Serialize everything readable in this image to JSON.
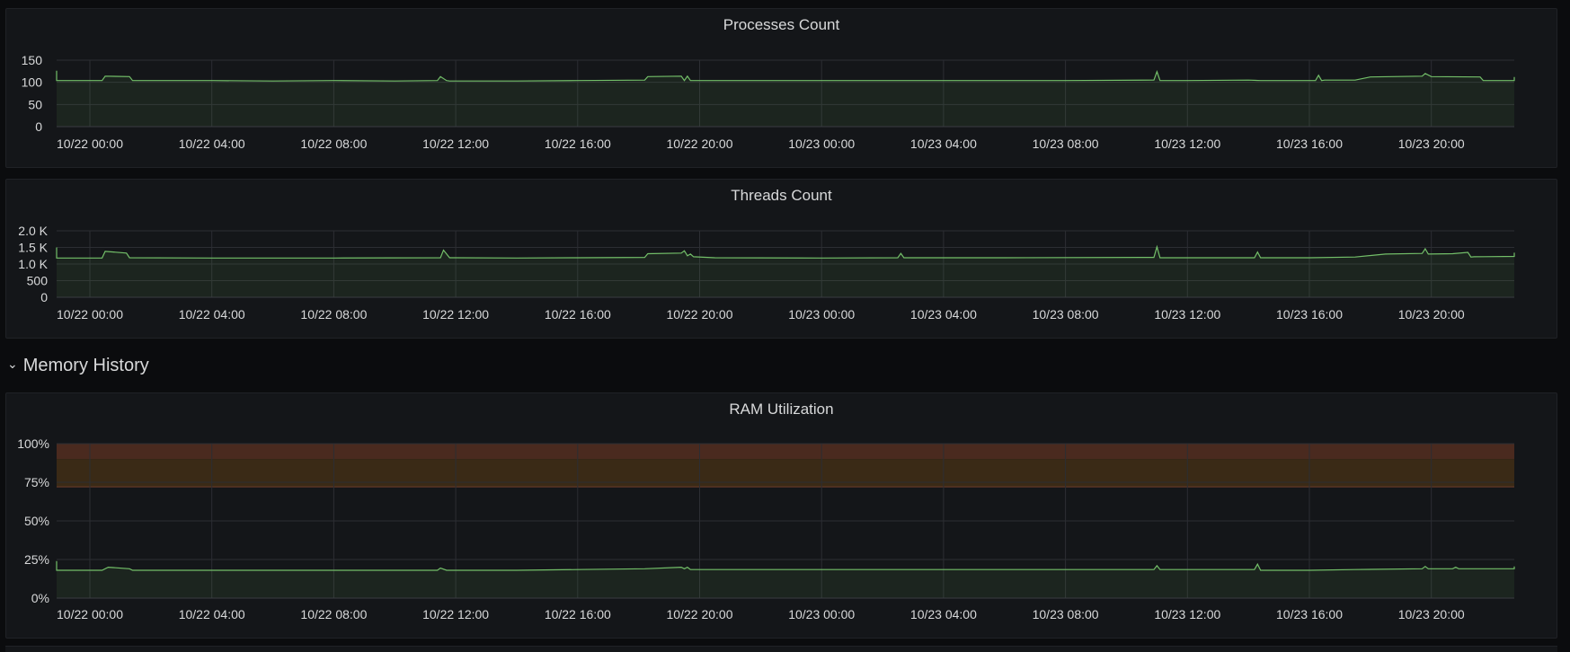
{
  "colors": {
    "series": "#73bf69",
    "grid": "#2c2e33",
    "axis_text": "#d8d9da",
    "threshold_red": "#4a2a1f",
    "threshold_orange": "#3a2a16",
    "threshold_line": "#6e3e2c"
  },
  "row": {
    "chevron_icon": "chevron-down-icon",
    "title": "Memory History"
  },
  "chart_data": [
    {
      "type": "area",
      "title": "Processes Count",
      "x_tick_labels": [
        "10/22 00:00",
        "10/22 04:00",
        "10/22 08:00",
        "10/22 12:00",
        "10/22 16:00",
        "10/22 20:00",
        "10/23 00:00",
        "10/23 04:00",
        "10/23 08:00",
        "10/23 12:00",
        "10/23 16:00",
        "10/23 20:00"
      ],
      "y_tick_labels": [
        "150",
        "100",
        "50",
        "0"
      ],
      "ylim": [
        0,
        150
      ],
      "grid": true,
      "series": [
        {
          "x_hours": [
            -2.8,
            -1.6,
            -1.6,
            0.4,
            0.5,
            1.3,
            1.4,
            4,
            6,
            8,
            10,
            11.4,
            11.5,
            11.7,
            11.8,
            14,
            16,
            18.2,
            18.3,
            19.4,
            19.5,
            19.6,
            19.7,
            20.5,
            22,
            24,
            26,
            28,
            30,
            32,
            34.9,
            35,
            35.1,
            36,
            38,
            38.4,
            40.2,
            40.3,
            40.4,
            40.5,
            41.5,
            42,
            43.7,
            43.8,
            44,
            45.6,
            45.7,
            45.8,
            47.5,
            47.6,
            47.8
          ],
          "values": [
            125,
            126,
            104,
            104,
            114,
            113,
            104,
            104,
            103,
            104,
            103,
            104,
            113,
            104,
            103,
            103,
            104,
            105,
            113,
            114,
            104,
            114,
            104,
            104,
            104,
            104,
            104,
            104,
            104,
            104,
            105,
            124,
            104,
            104,
            105,
            104,
            104,
            116,
            104,
            105,
            105,
            112,
            114,
            120,
            113,
            112,
            104,
            104,
            104,
            112,
            111
          ]
        }
      ]
    },
    {
      "type": "area",
      "title": "Threads Count",
      "x_tick_labels": [
        "10/22 00:00",
        "10/22 04:00",
        "10/22 08:00",
        "10/22 12:00",
        "10/22 16:00",
        "10/22 20:00",
        "10/23 00:00",
        "10/23 04:00",
        "10/23 08:00",
        "10/23 12:00",
        "10/23 16:00",
        "10/23 20:00"
      ],
      "y_tick_labels": [
        "2.0 K",
        "1.5 K",
        "1.0 K",
        "500",
        "0"
      ],
      "ylim": [
        0,
        2000
      ],
      "grid": true,
      "series": [
        {
          "x_hours": [
            -2.8,
            -1.6,
            -1.6,
            0.4,
            0.5,
            1.2,
            1.3,
            4,
            8,
            11.5,
            11.6,
            11.8,
            14,
            16,
            18.2,
            18.3,
            19.4,
            19.5,
            19.6,
            19.7,
            19.8,
            20.5,
            24,
            26.5,
            26.6,
            26.7,
            30,
            34.9,
            35,
            35.1,
            38.2,
            38.3,
            38.4,
            40,
            41.5,
            42.5,
            43.7,
            43.8,
            43.9,
            44.7,
            45.2,
            45.3,
            45.4,
            47.5,
            47.6,
            47.8
          ],
          "values": [
            1500,
            1490,
            1180,
            1180,
            1380,
            1330,
            1190,
            1180,
            1180,
            1190,
            1420,
            1190,
            1180,
            1190,
            1200,
            1310,
            1330,
            1400,
            1250,
            1300,
            1220,
            1190,
            1180,
            1190,
            1320,
            1190,
            1190,
            1200,
            1520,
            1190,
            1190,
            1360,
            1190,
            1190,
            1210,
            1300,
            1320,
            1460,
            1300,
            1310,
            1350,
            1210,
            1220,
            1230,
            1340,
            1300
          ]
        }
      ]
    },
    {
      "type": "area",
      "title": "RAM Utilization",
      "x_tick_labels": [
        "10/22 00:00",
        "10/22 04:00",
        "10/22 08:00",
        "10/22 12:00",
        "10/22 16:00",
        "10/22 20:00",
        "10/23 00:00",
        "10/23 04:00",
        "10/23 08:00",
        "10/23 12:00",
        "10/23 16:00",
        "10/23 20:00"
      ],
      "y_tick_labels": [
        "100%",
        "75%",
        "50%",
        "25%",
        "0%"
      ],
      "ylim": [
        0,
        100
      ],
      "grid": true,
      "thresholds": [
        {
          "from": 90,
          "to": 100,
          "color": "threshold_red"
        },
        {
          "from": 72,
          "to": 90,
          "color": "threshold_orange"
        }
      ],
      "series": [
        {
          "x_hours": [
            -2.8,
            -1.4,
            -1.4,
            0.4,
            0.6,
            1.3,
            1.4,
            4,
            8,
            11.4,
            11.5,
            11.7,
            14,
            16,
            18.2,
            19.4,
            19.5,
            19.6,
            19.7,
            20.5,
            24,
            28,
            32,
            34.9,
            35,
            35.1,
            38,
            38.2,
            38.3,
            38.4,
            40,
            41.5,
            43.7,
            43.8,
            43.9,
            44.7,
            44.8,
            44.9,
            47.5,
            47.6
          ],
          "values": [
            23,
            24,
            18,
            18,
            20,
            19,
            18,
            18,
            18,
            18,
            19.5,
            18,
            18,
            18.5,
            19,
            20,
            19,
            20,
            18.5,
            18.5,
            18.5,
            18.5,
            18.5,
            18.5,
            21,
            18.5,
            18.5,
            18.5,
            22,
            18,
            18,
            18.5,
            19,
            20.5,
            19,
            19,
            20,
            19,
            19,
            20.5
          ]
        }
      ]
    }
  ]
}
